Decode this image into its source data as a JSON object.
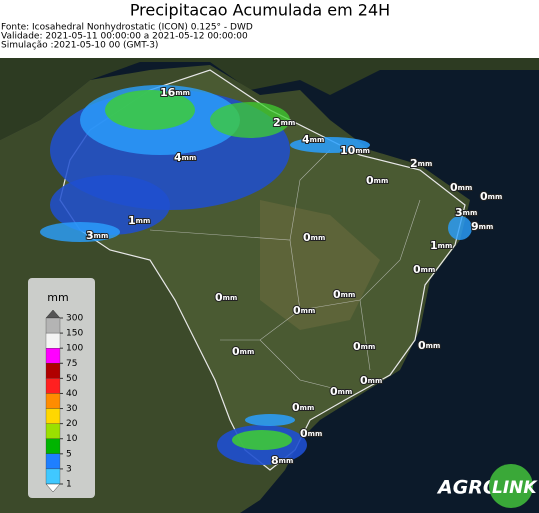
{
  "header": {
    "title": "Precipitacao Acumulada em 24H",
    "lines": [
      "Fonte: Icosahedral Nonhydrostatic (ICON) 0.125° - DWD",
      "Validade: 2021-05-11 00:00:00 a 2021-05-12 00:00:00",
      "Simulação :2021-05-10 00 (GMT-3)"
    ]
  },
  "map": {
    "labels": [
      {
        "amount": "16",
        "unit": "mm"
      },
      {
        "amount": "2",
        "unit": "mm"
      },
      {
        "amount": "4",
        "unit": "mm"
      },
      {
        "amount": "10",
        "unit": "mm"
      },
      {
        "amount": "4",
        "unit": "mm"
      },
      {
        "amount": "2",
        "unit": "mm"
      },
      {
        "amount": "0",
        "unit": "mm"
      },
      {
        "amount": "0",
        "unit": "mm"
      },
      {
        "amount": "0",
        "unit": "mm"
      },
      {
        "amount": "3",
        "unit": "mm"
      },
      {
        "amount": "9",
        "unit": "mm"
      },
      {
        "amount": "1",
        "unit": "mm"
      },
      {
        "amount": "3",
        "unit": "mm"
      },
      {
        "amount": "1",
        "unit": "mm"
      },
      {
        "amount": "0",
        "unit": "mm"
      },
      {
        "amount": "0",
        "unit": "mm"
      },
      {
        "amount": "0",
        "unit": "mm"
      },
      {
        "amount": "0",
        "unit": "mm"
      },
      {
        "amount": "0",
        "unit": "mm"
      },
      {
        "amount": "0",
        "unit": "mm"
      },
      {
        "amount": "0",
        "unit": "mm"
      },
      {
        "amount": "0",
        "unit": "mm"
      },
      {
        "amount": "0",
        "unit": "mm"
      },
      {
        "amount": "0",
        "unit": "mm"
      },
      {
        "amount": "0",
        "unit": "mm"
      },
      {
        "amount": "0",
        "unit": "mm"
      },
      {
        "amount": "8",
        "unit": "mm"
      }
    ]
  },
  "legend": {
    "unit": "mm",
    "ticks": [
      300,
      150,
      100,
      75,
      50,
      40,
      30,
      20,
      10,
      5,
      3,
      1
    ],
    "colors": [
      "#b4b4b4",
      "#f4f4f4",
      "#ff00ff",
      "#b00000",
      "#ff2020",
      "#ff8c00",
      "#ffd700",
      "#9be000",
      "#00b400",
      "#1e7fff",
      "#40c8ff"
    ]
  },
  "logo": [
    "AGRO",
    "LINK"
  ]
}
